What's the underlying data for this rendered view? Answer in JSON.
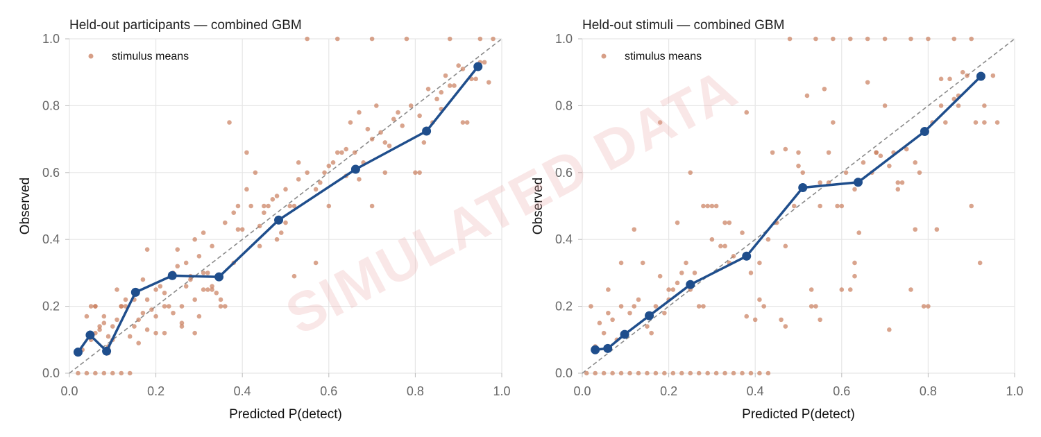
{
  "watermark": "SIMULATED DATA",
  "colors": {
    "calibration_line": "#1f4e8c",
    "stimulus_points": "#c97d5d",
    "reference_line": "#8a8a8a",
    "grid": "#e6e6e6",
    "watermark": "#e8a8a8"
  },
  "chart_data": [
    {
      "type": "scatter",
      "title": "Held-out participants — combined GBM",
      "xlabel": "Predicted P(detect)",
      "ylabel": "Observed",
      "xlim": [
        0,
        1
      ],
      "ylim": [
        0,
        1
      ],
      "xticks": [
        "0.0",
        "0.2",
        "0.4",
        "0.6",
        "0.8",
        "1.0"
      ],
      "yticks": [
        "0.0",
        "0.2",
        "0.4",
        "0.6",
        "0.8",
        "1.0"
      ],
      "grid": true,
      "legend_placement": "top-left",
      "reference_diagonal": true,
      "series": [
        {
          "name": "stimulus means",
          "kind": "points",
          "x": [
            0.02,
            0.04,
            0.06,
            0.08,
            0.1,
            0.12,
            0.14,
            0.03,
            0.05,
            0.07,
            0.09,
            0.11,
            0.13,
            0.15,
            0.17,
            0.06,
            0.08,
            0.1,
            0.12,
            0.14,
            0.16,
            0.18,
            0.2,
            0.05,
            0.07,
            0.09,
            0.11,
            0.13,
            0.04,
            0.06,
            0.08,
            0.1,
            0.15,
            0.17,
            0.19,
            0.21,
            0.23,
            0.25,
            0.27,
            0.18,
            0.2,
            0.22,
            0.24,
            0.26,
            0.28,
            0.3,
            0.32,
            0.25,
            0.27,
            0.29,
            0.31,
            0.33,
            0.35,
            0.22,
            0.24,
            0.26,
            0.28,
            0.3,
            0.32,
            0.34,
            0.36,
            0.38,
            0.29,
            0.31,
            0.33,
            0.36,
            0.38,
            0.4,
            0.42,
            0.44,
            0.46,
            0.48,
            0.5,
            0.52,
            0.39,
            0.41,
            0.43,
            0.45,
            0.47,
            0.49,
            0.51,
            0.53,
            0.55,
            0.57,
            0.59,
            0.61,
            0.63,
            0.58,
            0.6,
            0.62,
            0.64,
            0.66,
            0.68,
            0.7,
            0.72,
            0.74,
            0.65,
            0.67,
            0.69,
            0.71,
            0.73,
            0.75,
            0.77,
            0.79,
            0.81,
            0.83,
            0.85,
            0.87,
            0.89,
            0.91,
            0.93,
            0.95,
            0.97,
            0.8,
            0.82,
            0.84,
            0.86,
            0.88,
            0.9,
            0.92,
            0.94,
            0.96,
            0.55,
            0.62,
            0.7,
            0.78,
            0.88,
            0.95,
            0.98,
            0.18,
            0.37,
            0.41,
            0.22,
            0.29,
            0.33,
            0.48,
            0.52,
            0.6,
            0.7,
            0.76,
            0.86,
            0.35,
            0.45,
            0.57,
            0.64,
            0.73,
            0.12,
            0.16,
            0.06,
            0.09,
            0.2,
            0.26,
            0.31,
            0.39,
            0.44,
            0.5,
            0.53,
            0.67,
            0.81,
            0.91
          ],
          "y": [
            0.0,
            0.0,
            0.0,
            0.0,
            0.0,
            0.0,
            0.0,
            0.07,
            0.1,
            0.13,
            0.08,
            0.16,
            0.2,
            0.14,
            0.18,
            0.12,
            0.17,
            0.14,
            0.2,
            0.11,
            0.09,
            0.22,
            0.17,
            0.2,
            0.14,
            0.11,
            0.25,
            0.22,
            0.17,
            0.2,
            0.15,
            0.1,
            0.22,
            0.28,
            0.19,
            0.26,
            0.2,
            0.32,
            0.26,
            0.13,
            0.25,
            0.24,
            0.3,
            0.2,
            0.29,
            0.17,
            0.25,
            0.37,
            0.33,
            0.22,
            0.25,
            0.26,
            0.22,
            0.2,
            0.18,
            0.15,
            0.28,
            0.35,
            0.3,
            0.24,
            0.2,
            0.33,
            0.4,
            0.42,
            0.38,
            0.45,
            0.48,
            0.43,
            0.5,
            0.38,
            0.5,
            0.53,
            0.45,
            0.5,
            0.5,
            0.55,
            0.6,
            0.48,
            0.52,
            0.42,
            0.5,
            0.58,
            0.6,
            0.55,
            0.6,
            0.63,
            0.66,
            0.57,
            0.62,
            0.66,
            0.59,
            0.66,
            0.63,
            0.7,
            0.72,
            0.68,
            0.75,
            0.78,
            0.73,
            0.8,
            0.69,
            0.76,
            0.74,
            0.8,
            0.77,
            0.85,
            0.82,
            0.89,
            0.86,
            0.91,
            0.88,
            0.93,
            0.87,
            0.6,
            0.69,
            0.75,
            0.79,
            0.86,
            0.92,
            0.75,
            0.88,
            0.93,
            1.0,
            1.0,
            1.0,
            1.0,
            1.0,
            1.0,
            1.0,
            0.37,
            0.75,
            0.66,
            0.12,
            0.12,
            0.25,
            0.4,
            0.29,
            0.5,
            0.5,
            0.78,
            0.84,
            0.2,
            0.5,
            0.33,
            0.67,
            0.6,
            0.2,
            0.16,
            0.2,
            0.06,
            0.12,
            0.14,
            0.3,
            0.43,
            0.44,
            0.55,
            0.63,
            0.58,
            0.6,
            0.75
          ]
        },
        {
          "name": "",
          "kind": "line-markers",
          "x": [
            0.02,
            0.048,
            0.086,
            0.153,
            0.238,
            0.346,
            0.484,
            0.662,
            0.826,
            0.945
          ],
          "y": [
            0.063,
            0.114,
            0.066,
            0.242,
            0.292,
            0.288,
            0.458,
            0.61,
            0.724,
            0.917
          ]
        }
      ]
    },
    {
      "type": "scatter",
      "title": "Held-out stimuli — combined GBM",
      "xlabel": "Predicted P(detect)",
      "ylabel": "Observed",
      "xlim": [
        0,
        1
      ],
      "ylim": [
        0,
        1
      ],
      "xticks": [
        "0.0",
        "0.2",
        "0.4",
        "0.6",
        "0.8",
        "1.0"
      ],
      "yticks": [
        "0.0",
        "0.2",
        "0.4",
        "0.6",
        "0.8",
        "1.0"
      ],
      "grid": true,
      "legend_placement": "top-left",
      "reference_diagonal": true,
      "series": [
        {
          "name": "stimulus means",
          "kind": "points",
          "x": [
            0.01,
            0.03,
            0.05,
            0.07,
            0.09,
            0.11,
            0.13,
            0.15,
            0.17,
            0.19,
            0.21,
            0.23,
            0.25,
            0.27,
            0.29,
            0.31,
            0.33,
            0.35,
            0.37,
            0.39,
            0.41,
            0.43,
            0.02,
            0.04,
            0.06,
            0.08,
            0.1,
            0.12,
            0.03,
            0.05,
            0.07,
            0.09,
            0.11,
            0.13,
            0.15,
            0.17,
            0.19,
            0.21,
            0.23,
            0.25,
            0.27,
            0.16,
            0.18,
            0.2,
            0.22,
            0.24,
            0.26,
            0.28,
            0.3,
            0.32,
            0.34,
            0.29,
            0.31,
            0.33,
            0.35,
            0.37,
            0.39,
            0.41,
            0.43,
            0.45,
            0.47,
            0.49,
            0.51,
            0.53,
            0.55,
            0.57,
            0.59,
            0.61,
            0.63,
            0.65,
            0.67,
            0.69,
            0.71,
            0.73,
            0.75,
            0.77,
            0.79,
            0.81,
            0.83,
            0.85,
            0.87,
            0.89,
            0.91,
            0.93,
            0.95,
            0.14,
            0.18,
            0.22,
            0.25,
            0.3,
            0.34,
            0.38,
            0.42,
            0.46,
            0.5,
            0.54,
            0.58,
            0.62,
            0.66,
            0.7,
            0.74,
            0.78,
            0.82,
            0.86,
            0.9,
            0.38,
            0.44,
            0.52,
            0.56,
            0.6,
            0.64,
            0.68,
            0.72,
            0.76,
            0.8,
            0.84,
            0.88,
            0.92,
            0.96,
            0.48,
            0.54,
            0.58,
            0.62,
            0.66,
            0.7,
            0.76,
            0.8,
            0.86,
            0.9,
            0.06,
            0.09,
            0.12,
            0.2,
            0.28,
            0.33,
            0.4,
            0.47,
            0.55,
            0.63,
            0.71,
            0.79,
            0.87,
            0.93,
            0.5,
            0.6,
            0.55,
            0.47,
            0.41,
            0.53,
            0.57,
            0.63,
            0.68,
            0.73,
            0.77,
            0.83
          ],
          "y": [
            0.0,
            0.0,
            0.0,
            0.0,
            0.0,
            0.0,
            0.0,
            0.0,
            0.0,
            0.0,
            0.0,
            0.0,
            0.0,
            0.0,
            0.0,
            0.0,
            0.0,
            0.0,
            0.0,
            0.0,
            0.0,
            0.0,
            0.2,
            0.15,
            0.18,
            0.1,
            0.12,
            0.2,
            0.08,
            0.12,
            0.16,
            0.2,
            0.18,
            0.22,
            0.14,
            0.2,
            0.18,
            0.25,
            0.3,
            0.25,
            0.2,
            0.12,
            0.29,
            0.22,
            0.27,
            0.33,
            0.3,
            0.2,
            0.5,
            0.38,
            0.45,
            0.5,
            0.5,
            0.45,
            0.35,
            0.42,
            0.3,
            0.22,
            0.4,
            0.45,
            0.38,
            0.5,
            0.6,
            0.25,
            0.5,
            0.57,
            0.5,
            0.6,
            0.55,
            0.63,
            0.6,
            0.65,
            0.62,
            0.55,
            0.67,
            0.63,
            0.72,
            0.75,
            0.8,
            0.88,
            0.83,
            0.89,
            0.75,
            0.8,
            0.89,
            0.33,
            0.75,
            0.45,
            0.6,
            0.4,
            0.33,
            0.17,
            0.2,
            0.16,
            0.66,
            0.2,
            0.75,
            0.25,
            0.87,
            0.8,
            0.57,
            0.6,
            0.43,
            0.82,
            0.5,
            0.78,
            0.66,
            0.83,
            0.85,
            0.5,
            0.42,
            0.66,
            0.66,
            0.25,
            0.2,
            0.75,
            0.9,
            0.33,
            0.75,
            1.0,
            1.0,
            1.0,
            1.0,
            1.0,
            1.0,
            1.0,
            1.0,
            1.0,
            1.0,
            0.25,
            0.33,
            0.43,
            0.25,
            0.5,
            0.38,
            0.16,
            0.14,
            0.16,
            0.33,
            0.13,
            0.2,
            0.8,
            0.75,
            0.62,
            0.25,
            0.57,
            0.67,
            0.33,
            0.2,
            0.66,
            0.29,
            0.66,
            0.57,
            0.43,
            0.88
          ]
        },
        {
          "name": "",
          "kind": "line-markers",
          "x": [
            0.03,
            0.059,
            0.098,
            0.155,
            0.25,
            0.38,
            0.51,
            0.638,
            0.792,
            0.922
          ],
          "y": [
            0.07,
            0.074,
            0.116,
            0.172,
            0.265,
            0.35,
            0.555,
            0.571,
            0.723,
            0.888
          ]
        }
      ]
    }
  ]
}
